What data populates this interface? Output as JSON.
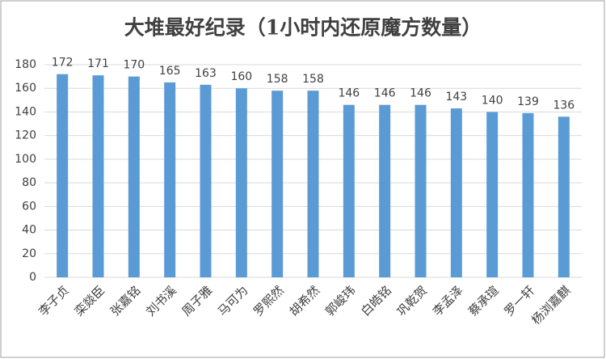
{
  "chart_data": {
    "type": "bar",
    "title": "大堆最好纪录（1小时内还原魔方数量）",
    "categories": [
      "李子贞",
      "栾燚臣",
      "张嘉铭",
      "刘书溪",
      "周子雅",
      "马可为",
      "罗熙然",
      "胡希然",
      "郭峻玮",
      "白皓铭",
      "巩乾贺",
      "李孟泽",
      "蔡承瑄",
      "罗一轩",
      "杨浏嘉麒"
    ],
    "values": [
      172,
      171,
      170,
      165,
      163,
      160,
      158,
      158,
      146,
      146,
      146,
      143,
      140,
      139,
      136
    ],
    "color": "#5b9bd5",
    "ylim": [
      0,
      180
    ],
    "yticks": [
      0,
      20,
      40,
      60,
      80,
      100,
      120,
      140,
      160,
      180
    ],
    "grid": true
  }
}
